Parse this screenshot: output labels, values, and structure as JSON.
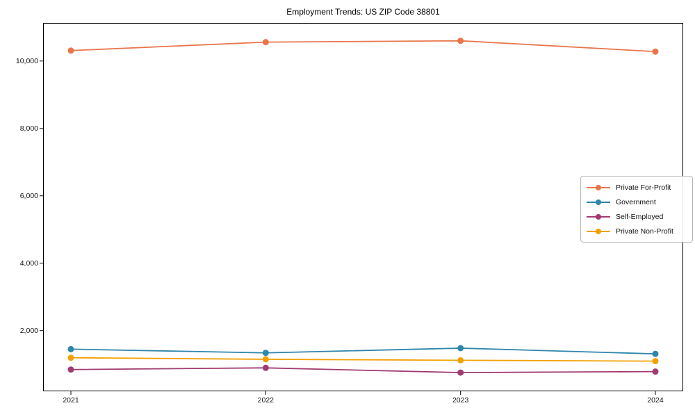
{
  "chart_data": {
    "type": "line",
    "title": "Employment Trends: US ZIP Code 38801",
    "xlabel": "",
    "ylabel": "",
    "categories": [
      "2021",
      "2022",
      "2023",
      "2024"
    ],
    "series": [
      {
        "name": "Private For-Profit",
        "color": "#E8764B",
        "values": [
          10310,
          10560,
          10600,
          10280
        ]
      },
      {
        "name": "Government",
        "color": "#2E86AB",
        "values": [
          1450,
          1340,
          1480,
          1310
        ]
      },
      {
        "name": "Self-Employed",
        "color": "#A23B72",
        "values": [
          845,
          895,
          755,
          785
        ]
      },
      {
        "name": "Private Non-Profit",
        "color": "#F2A104",
        "values": [
          1195,
          1150,
          1120,
          1095
        ]
      }
    ],
    "yticks": [
      {
        "value": 2000,
        "label": "2,000"
      },
      {
        "value": 4000,
        "label": "4,000"
      },
      {
        "value": 6000,
        "label": "6,000"
      },
      {
        "value": 8000,
        "label": "8,000"
      },
      {
        "value": 10000,
        "label": "10,000"
      }
    ],
    "ylim": [
      200,
      11130
    ],
    "grid": false,
    "legend_position": "center right",
    "marker": "circle",
    "frame_color": "#000000"
  }
}
